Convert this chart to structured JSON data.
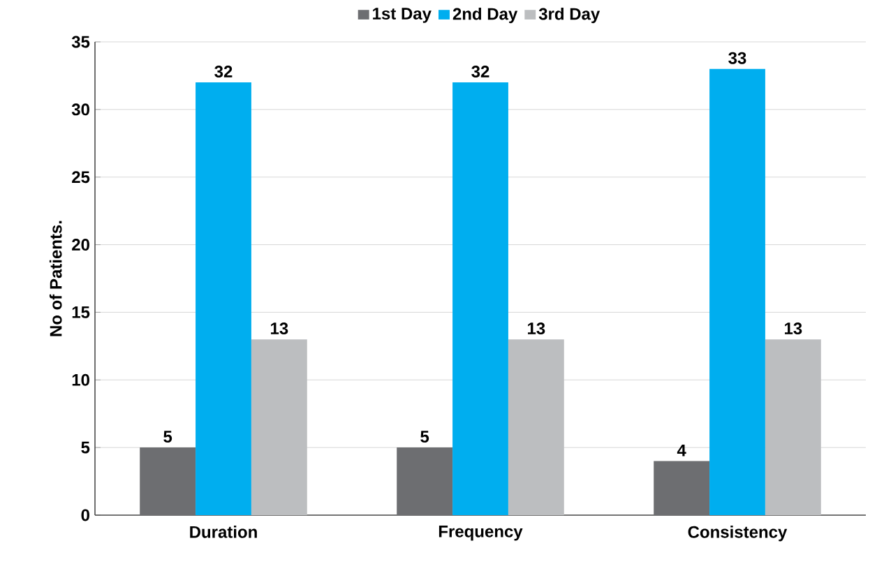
{
  "chart_data": {
    "type": "bar",
    "ylabel": "No of Patients.",
    "categories": [
      "Duration",
      "Frequency",
      "Consistency"
    ],
    "series": [
      {
        "name": "1st Day",
        "color": "#6d6e71",
        "values": [
          5,
          5,
          4
        ]
      },
      {
        "name": "2nd Day",
        "color": "#00aeef",
        "values": [
          32,
          32,
          33
        ]
      },
      {
        "name": "3rd Day",
        "color": "#bcbec0",
        "values": [
          13,
          13,
          13
        ]
      }
    ],
    "ylim": [
      0,
      35
    ],
    "yticks": [
      0,
      5,
      10,
      15,
      20,
      25,
      30,
      35
    ],
    "grid": "y",
    "legend": "top",
    "data_labels": true
  }
}
